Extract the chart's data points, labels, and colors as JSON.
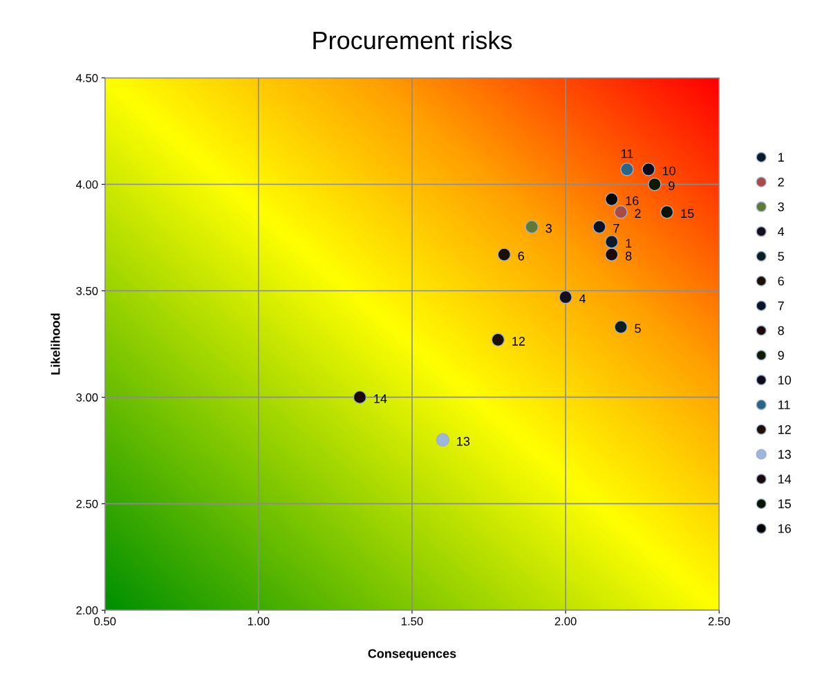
{
  "chart_data": {
    "type": "scatter",
    "title": "Procurement risks",
    "xlabel": "Consequences",
    "ylabel": "Likelihood",
    "xlim": [
      0.5,
      2.5
    ],
    "xticks": [
      {
        "value": 0.5,
        "label": "0.50"
      },
      {
        "value": 1.0,
        "label": "1.00"
      },
      {
        "value": 1.5,
        "label": "1.50"
      },
      {
        "value": 2.0,
        "label": "2.00"
      },
      {
        "value": 2.5,
        "label": "2.50"
      }
    ],
    "ylim": [
      2.0,
      4.5
    ],
    "yticks": [
      {
        "value": 2.0,
        "label": "2.00"
      },
      {
        "value": 2.5,
        "label": "2.50"
      },
      {
        "value": 3.0,
        "label": "3.00"
      },
      {
        "value": 3.5,
        "label": "3.50"
      },
      {
        "value": 4.0,
        "label": "4.00"
      },
      {
        "value": 4.5,
        "label": "4.50"
      }
    ],
    "grid": true,
    "legend": "right",
    "marker": "circle",
    "series": [
      {
        "name": "1",
        "color": "#0d1a2b",
        "x": [
          2.15
        ],
        "values": [
          3.73
        ]
      },
      {
        "name": "2",
        "color": "#a84a45",
        "x": [
          2.18
        ],
        "values": [
          3.87
        ]
      },
      {
        "name": "3",
        "color": "#5f7a37",
        "x": [
          1.89
        ],
        "values": [
          3.8
        ]
      },
      {
        "name": "4",
        "color": "#150f1e",
        "x": [
          2.0
        ],
        "values": [
          3.47
        ]
      },
      {
        "name": "5",
        "color": "#0a1e22",
        "x": [
          2.18
        ],
        "values": [
          3.33
        ]
      },
      {
        "name": "6",
        "color": "#1e0f05",
        "x": [
          1.8
        ],
        "values": [
          3.67
        ]
      },
      {
        "name": "7",
        "color": "#0a1428",
        "x": [
          2.11
        ],
        "values": [
          3.8
        ]
      },
      {
        "name": "8",
        "color": "#1e0a0a",
        "x": [
          2.15
        ],
        "values": [
          3.67
        ]
      },
      {
        "name": "9",
        "color": "#0f1a05",
        "x": [
          2.29
        ],
        "values": [
          4.0
        ]
      },
      {
        "name": "10",
        "color": "#100a1a",
        "x": [
          2.27
        ],
        "values": [
          4.07
        ]
      },
      {
        "name": "11",
        "color": "#2a6585",
        "x": [
          2.2
        ],
        "values": [
          4.07
        ]
      },
      {
        "name": "12",
        "color": "#1e0f05",
        "x": [
          1.78
        ],
        "values": [
          3.27
        ]
      },
      {
        "name": "13",
        "color": "#9fb6db",
        "x": [
          1.6
        ],
        "values": [
          2.8
        ]
      },
      {
        "name": "14",
        "color": "#1a0a0a",
        "x": [
          1.33
        ],
        "values": [
          3.0
        ]
      },
      {
        "name": "15",
        "color": "#0a1405",
        "x": [
          2.33
        ],
        "values": [
          3.87
        ]
      },
      {
        "name": "16",
        "color": "#000000",
        "x": [
          2.15
        ],
        "values": [
          3.93
        ]
      }
    ]
  }
}
